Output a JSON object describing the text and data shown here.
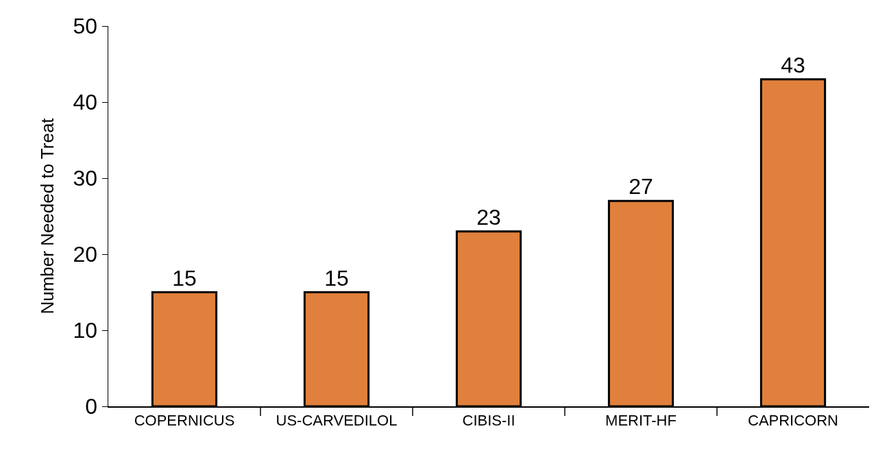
{
  "chart_data": {
    "type": "bar",
    "ylabel": "Number Needed to Treat",
    "categories": [
      "COPERNICUS",
      "US-CARVEDILOL",
      "CIBIS-II",
      "MERIT-HF",
      "CAPRICORN"
    ],
    "values": [
      15,
      15,
      23,
      27,
      43
    ],
    "color": "#e0803c",
    "ylim": [
      0,
      50
    ],
    "yticks": [
      0,
      10,
      20,
      30,
      40,
      50
    ],
    "data_labels": true
  }
}
